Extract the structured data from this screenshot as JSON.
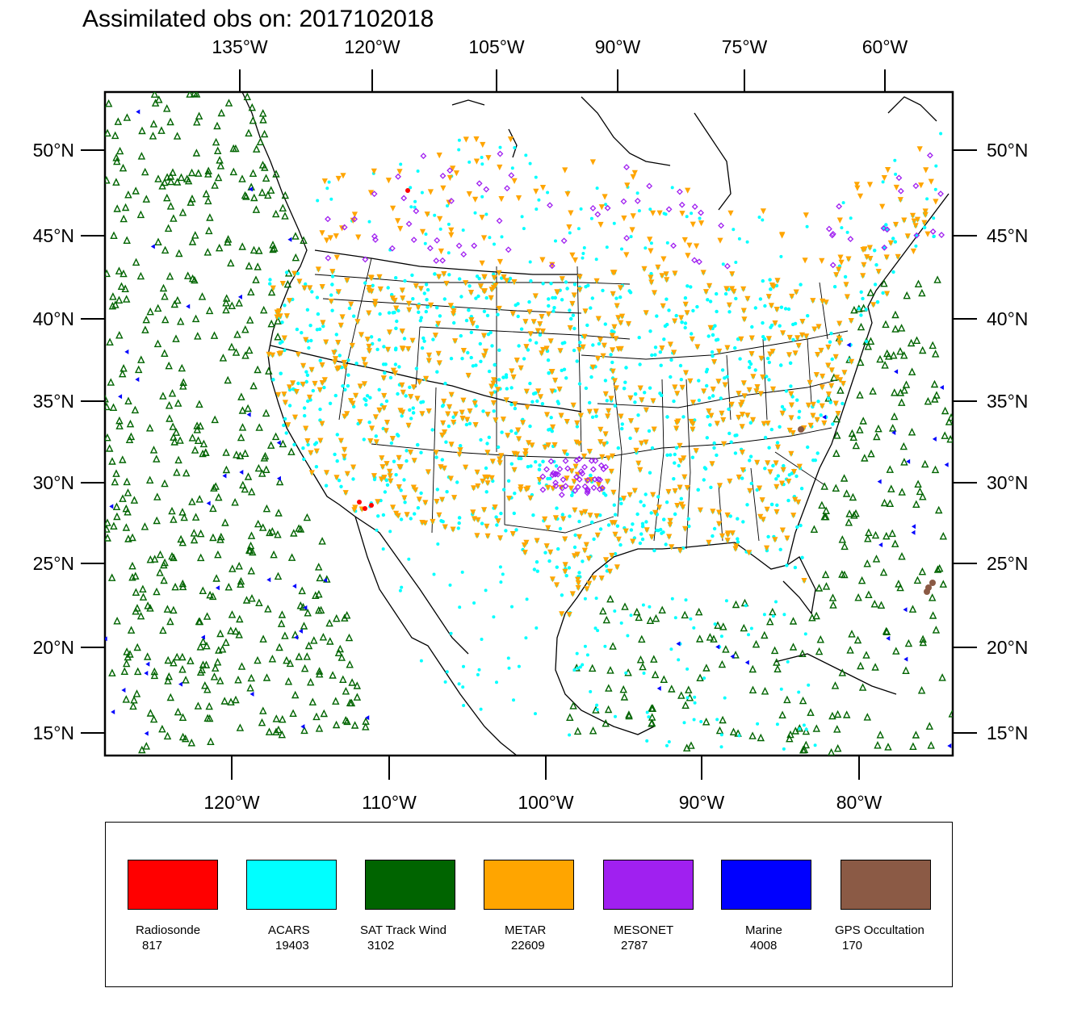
{
  "title": "Assimilated obs on: 2017102018",
  "top_lon_labels": [
    "135°W",
    "120°W",
    "105°W",
    "90°W",
    "75°W",
    "60°W"
  ],
  "bottom_lon_labels": [
    "120°W",
    "110°W",
    "100°W",
    "90°W",
    "80°W"
  ],
  "lat_labels": [
    "50°N",
    "45°N",
    "40°N",
    "35°N",
    "30°N",
    "25°N",
    "20°N",
    "15°N"
  ],
  "legend": [
    {
      "name": "Radiosonde",
      "count": "817",
      "color": "#ff0000"
    },
    {
      "name": "ACARS",
      "count": "19403",
      "color": "#00ffff"
    },
    {
      "name": "SAT Track Wind",
      "count": "3102",
      "color": "#006400"
    },
    {
      "name": "METAR",
      "count": "22609",
      "color": "#ffa500"
    },
    {
      "name": "MESONET",
      "count": "2787",
      "color": "#a020f0"
    },
    {
      "name": "Marine",
      "count": "4008",
      "color": "#0000ff"
    },
    {
      "name": "GPS Occultation",
      "count": "170",
      "color": "#8b5a45"
    }
  ]
}
